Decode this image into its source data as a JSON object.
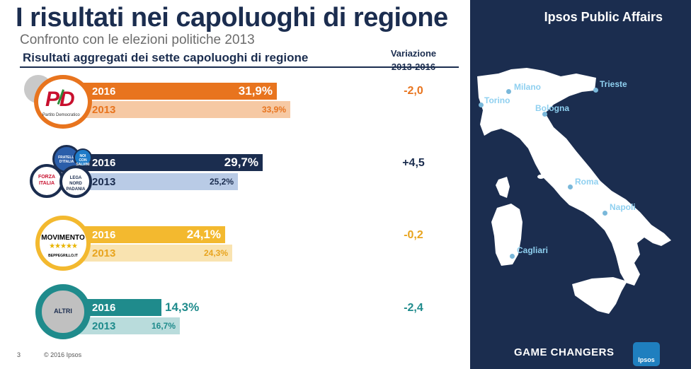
{
  "header": {
    "title": "I risultati nei capoluoghi di regione",
    "subtitle": "Confronto con le elezioni politiche 2013",
    "section": "Risultati aggregati dei sette capoluoghi di regione",
    "variation_header_1": "Variazione",
    "variation_header_2": "2013-2016"
  },
  "parties": [
    {
      "logo_text": "PD",
      "logo_sub": "Partito Democratico",
      "year_2016": "2016",
      "value_2016": "31,9%",
      "year_2013": "2013",
      "value_2013": "33,9%",
      "variation": "-2,0",
      "color": "#e8741e",
      "light_color": "#f6c9a4"
    },
    {
      "logo_texts": [
        "FRATELLI D'ITALIA",
        "NOI CON SALVINI",
        "FORZA ITALIA",
        "LEGA NORD PADANIA"
      ],
      "year_2016": "2016",
      "value_2016": "29,7%",
      "year_2013": "2013",
      "value_2013": "25,2%",
      "variation": "+4,5",
      "color": "#1b2d4f",
      "light_color": "#b9cbe6"
    },
    {
      "logo_text": "MOVIMENTO",
      "logo_sub": "BEPPEGRILLO.IT",
      "year_2016": "2016",
      "value_2016": "24,1%",
      "year_2013": "2013",
      "value_2013": "24,3%",
      "variation": "-0,2",
      "color": "#f3b92f",
      "light_color": "#f9e3b0"
    },
    {
      "logo_text": "ALTRI",
      "year_2016": "2016",
      "value_2016": "14,3%",
      "year_2013": "2013",
      "value_2013": "16,7%",
      "variation": "-2,4",
      "color": "#1f8b8c",
      "light_color": "#b9dcdc"
    }
  ],
  "footer": {
    "page": "3",
    "copyright": "© 2016 Ipsos"
  },
  "panel": {
    "brand": "Ipsos Public Affairs",
    "tagline": "GAME CHANGERS",
    "logo_text": "Ipsos",
    "cities": [
      "Milano",
      "Torino",
      "Trieste",
      "Bologna",
      "Roma",
      "Napoli",
      "Cagliari"
    ]
  }
}
